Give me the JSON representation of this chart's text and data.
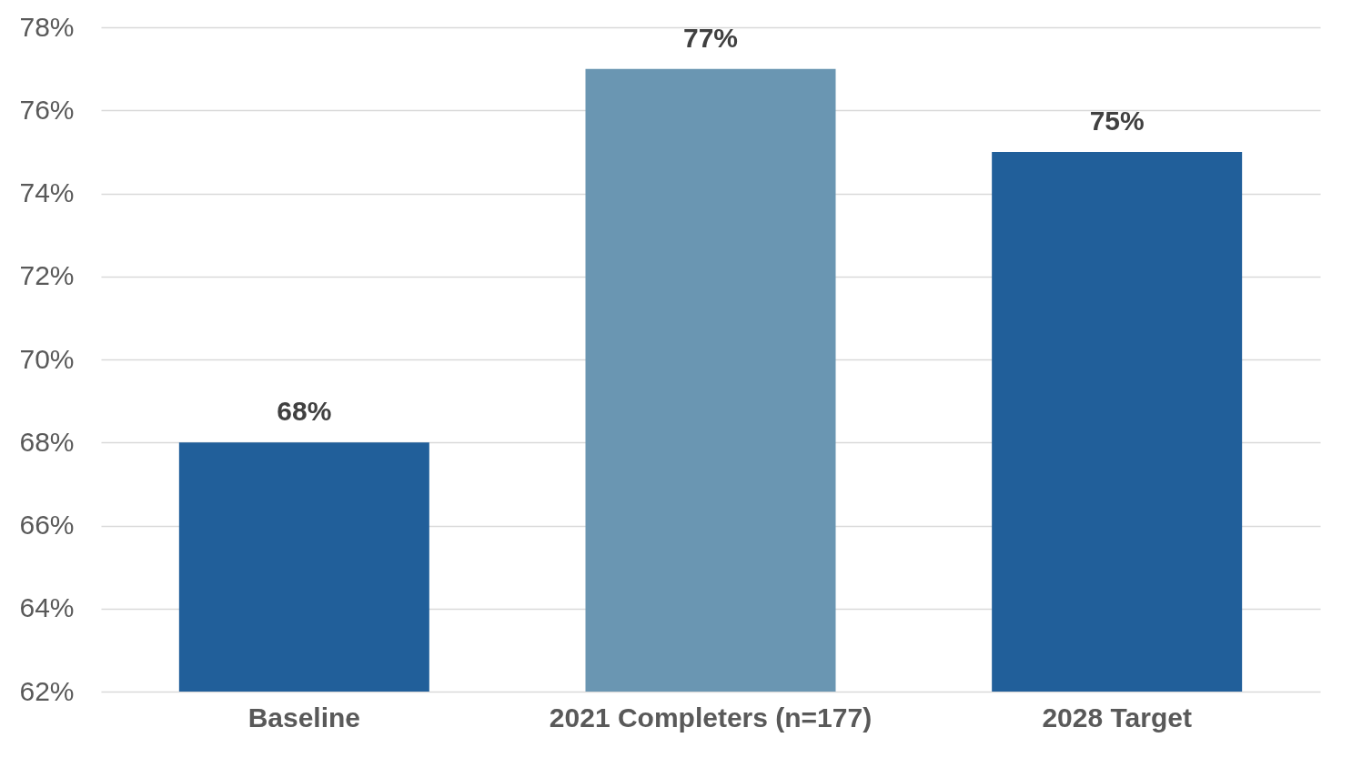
{
  "chart_data": {
    "type": "bar",
    "categories": [
      "Baseline",
      "2021 Completers (n=177)",
      "2028 Target"
    ],
    "values": [
      68,
      77,
      75
    ],
    "colors": [
      "#215f9a",
      "#6a96b2",
      "#215f9a"
    ],
    "value_labels": [
      "68%",
      "77%",
      "75%"
    ],
    "ylim": [
      62,
      78
    ],
    "yticks": [
      {
        "value": 62,
        "label": "62%"
      },
      {
        "value": 64,
        "label": "64%"
      },
      {
        "value": 66,
        "label": "66%"
      },
      {
        "value": 68,
        "label": "68%"
      },
      {
        "value": 70,
        "label": "70%"
      },
      {
        "value": 72,
        "label": "72%"
      },
      {
        "value": 74,
        "label": "74%"
      },
      {
        "value": 76,
        "label": "76%"
      },
      {
        "value": 78,
        "label": "78%"
      }
    ],
    "grid": "y"
  }
}
